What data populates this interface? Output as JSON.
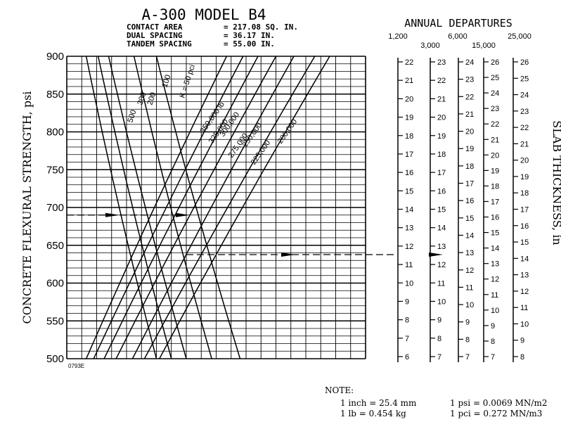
{
  "chart_data": {
    "type": "line",
    "title": "A-300 MODEL B4",
    "specs": [
      {
        "label": "CONTACT AREA",
        "value": "= 217.08 SQ. IN."
      },
      {
        "label": "DUAL SPACING",
        "value": "= 36.17 IN."
      },
      {
        "label": "TANDEM SPACING",
        "value": "= 55.00 IN."
      }
    ],
    "ylabel": "CONCRETE FLEXURAL STRENGTH, psi",
    "ylim": [
      500,
      900
    ],
    "yticks": [
      "900",
      "850",
      "800",
      "750",
      "700",
      "650",
      "600",
      "550",
      "500"
    ],
    "grid": true,
    "figure_id": "0793E",
    "k_series": [
      {
        "name": "500",
        "points": [
          [
            500,
            0.3
          ],
          [
            900,
            0.065
          ]
        ]
      },
      {
        "name": "300",
        "points": [
          [
            500,
            0.35
          ],
          [
            900,
            0.105
          ]
        ]
      },
      {
        "name": "200",
        "points": [
          [
            500,
            0.4
          ],
          [
            900,
            0.14
          ]
        ]
      },
      {
        "name": "100",
        "points": [
          [
            500,
            0.485
          ],
          [
            900,
            0.225
          ]
        ]
      },
      {
        "name": "K = 50 pci",
        "points": [
          [
            500,
            0.58
          ],
          [
            900,
            0.3
          ]
        ]
      }
    ],
    "departure_series": [
      {
        "name": "350,000 lb",
        "points": [
          [
            500,
            0.065
          ],
          [
            900,
            0.535
          ]
        ]
      },
      {
        "name": "325,000",
        "points": [
          [
            500,
            0.09
          ],
          [
            900,
            0.59
          ]
        ]
      },
      {
        "name": "300,000",
        "points": [
          [
            500,
            0.125
          ],
          [
            900,
            0.64
          ]
        ]
      },
      {
        "name": "275,000",
        "points": [
          [
            500,
            0.165
          ],
          [
            900,
            0.7
          ]
        ]
      },
      {
        "name": "250,000",
        "points": [
          [
            500,
            0.22
          ],
          [
            900,
            0.76
          ]
        ]
      },
      {
        "name": "225,000",
        "points": [
          [
            500,
            0.26
          ],
          [
            900,
            0.83
          ]
        ]
      },
      {
        "name": "200,000",
        "points": [
          [
            500,
            0.31
          ],
          [
            900,
            0.88
          ]
        ]
      }
    ],
    "k_label_texts": [
      "500",
      "300",
      "200",
      "100",
      "K = 50 pci"
    ],
    "load_label_texts": [
      "350,000 lb",
      "325,000",
      "300,000",
      "275,000",
      "250,000",
      "225,000",
      "200,000"
    ],
    "example_paths": [
      {
        "flexural_strength": 690,
        "slab_thickness": 14.0
      }
    ],
    "annual_departures": {
      "title": "ANNUAL DEPARTURES",
      "upper_labels": [
        "1,200",
        "6,000",
        "25,000"
      ],
      "lower_labels": [
        "3,000",
        "15,000"
      ]
    },
    "thickness_label": "SLAB THICKNESS, in",
    "thickness_scales": [
      {
        "name": "1,200",
        "min": 6,
        "max": 22
      },
      {
        "name": "3,000",
        "min": 7,
        "max": 23
      },
      {
        "name": "6,000",
        "min": 7,
        "max": 24
      },
      {
        "name": "15,000",
        "min": 7,
        "max": 26
      },
      {
        "name": "25,000",
        "min": 8,
        "max": 26
      }
    ]
  },
  "note": {
    "title": "NOTE:",
    "lines": [
      [
        "1 inch = 25.4 mm",
        "1 psi = 0.0069 MN/m2"
      ],
      [
        "1 lb = 0.454 kg",
        "1 pci = 0.272 MN/m3"
      ]
    ]
  }
}
